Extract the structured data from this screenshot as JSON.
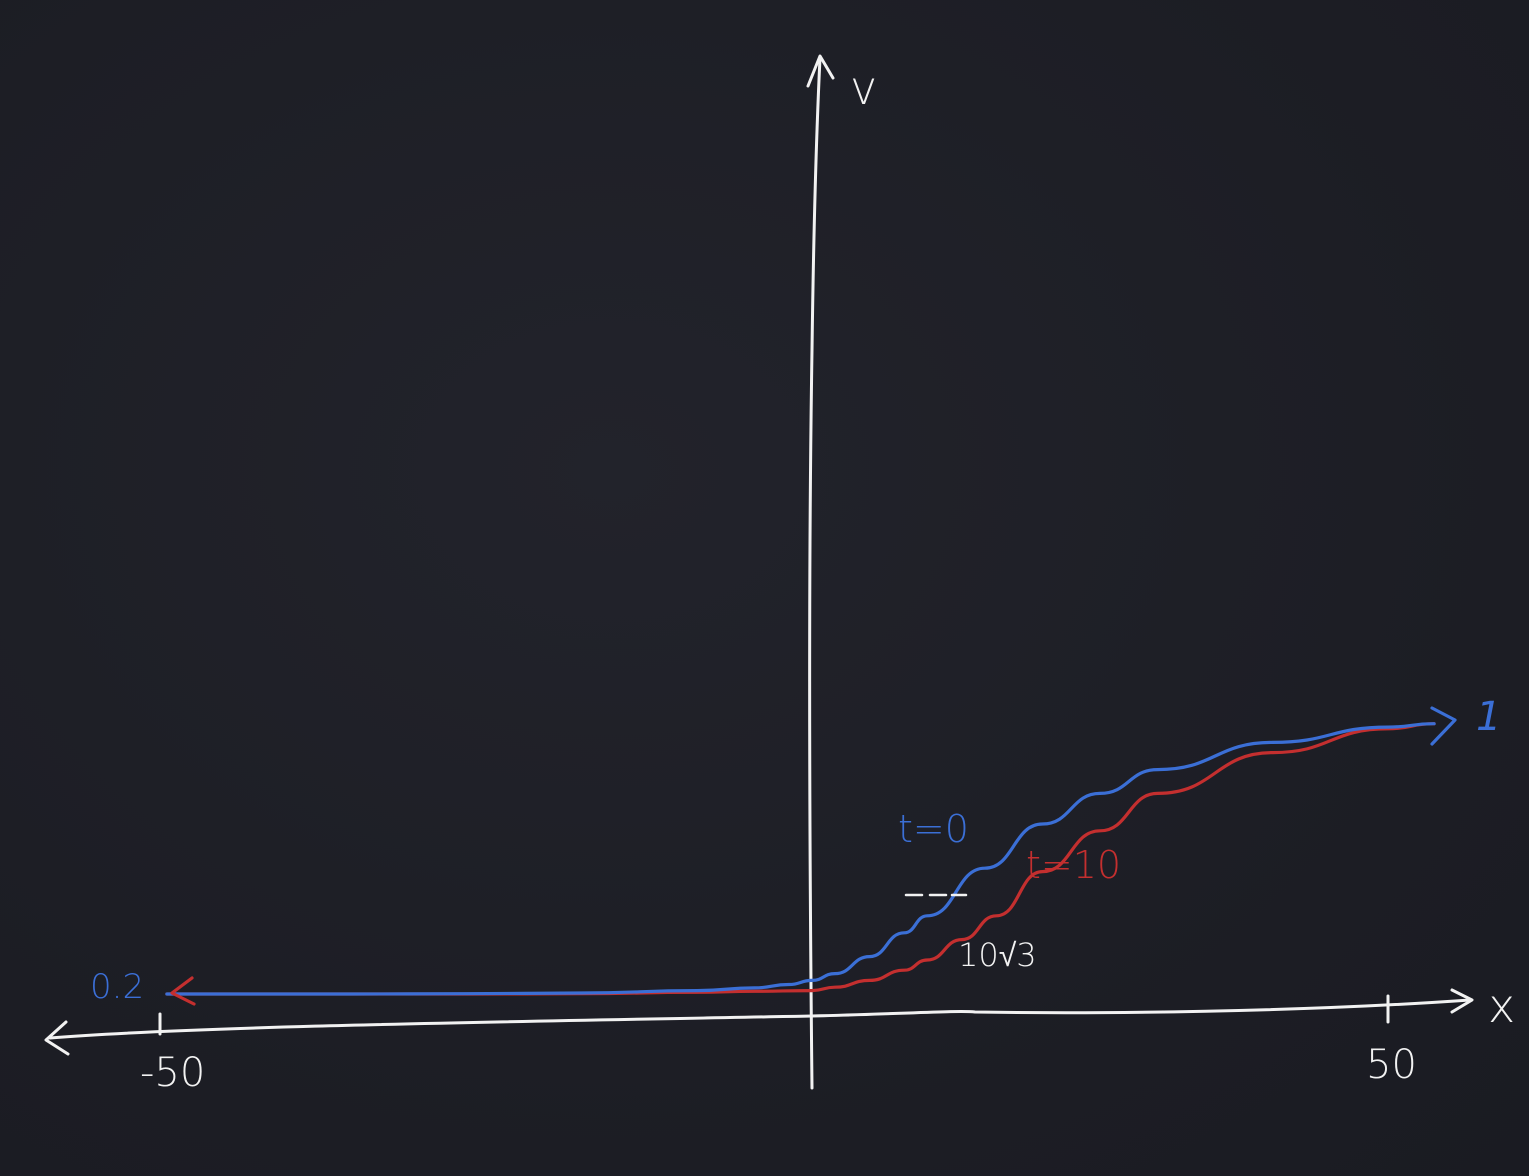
{
  "colors": {
    "background": "#1d1e26",
    "axes": "#f2f2f2",
    "series_t0": "#3b6fd6",
    "series_t10": "#c42f2f"
  },
  "chart_data": {
    "type": "line",
    "xlabel": "x",
    "ylabel": "v",
    "x_ticks": [
      {
        "value": -50,
        "label": "-50"
      },
      {
        "value": 50,
        "label": "50"
      }
    ],
    "xlim": [
      -56,
      56
    ],
    "ylim": [
      0,
      1
    ],
    "asymptote_labels": [
      {
        "value": 0.2,
        "label": "0.2",
        "side": "left"
      },
      {
        "value": 1,
        "label": "1",
        "side": "right"
      }
    ],
    "series": [
      {
        "name": "t=0",
        "color": "#3b6fd6",
        "x": [
          -56,
          -50,
          -40,
          -30,
          -20,
          -10,
          -5,
          -2,
          0,
          2,
          5,
          8,
          10,
          15,
          20,
          25,
          30,
          40,
          50,
          54
        ],
        "y": [
          0.2,
          0.2,
          0.2,
          0.201,
          0.203,
          0.21,
          0.218,
          0.228,
          0.24,
          0.26,
          0.31,
          0.38,
          0.43,
          0.57,
          0.7,
          0.79,
          0.86,
          0.94,
          0.985,
          0.995
        ]
      },
      {
        "name": "t=10",
        "color": "#c42f2f",
        "x": [
          -56,
          -50,
          -40,
          -30,
          -20,
          -10,
          -5,
          0,
          2,
          5,
          8,
          10,
          13,
          16,
          20,
          25,
          30,
          40,
          50,
          54
        ],
        "y": [
          0.2,
          0.2,
          0.2,
          0.2,
          0.201,
          0.205,
          0.208,
          0.21,
          0.22,
          0.24,
          0.27,
          0.3,
          0.36,
          0.43,
          0.56,
          0.68,
          0.79,
          0.91,
          0.98,
          0.995
        ]
      }
    ],
    "annotations": [
      {
        "text": "10√3",
        "x": 15,
        "y": 0.32
      }
    ],
    "grid": false,
    "legend": "inline labels near curves"
  }
}
